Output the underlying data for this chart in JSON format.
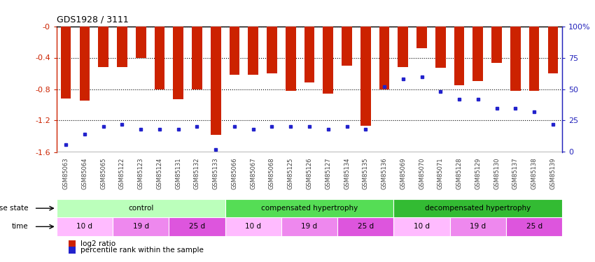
{
  "title": "GDS1928 / 3111",
  "samples": [
    "GSM85063",
    "GSM85064",
    "GSM85065",
    "GSM85122",
    "GSM85123",
    "GSM85124",
    "GSM85131",
    "GSM85132",
    "GSM85133",
    "GSM85066",
    "GSM85067",
    "GSM85068",
    "GSM85125",
    "GSM85126",
    "GSM85127",
    "GSM85134",
    "GSM85135",
    "GSM85136",
    "GSM85069",
    "GSM85070",
    "GSM85071",
    "GSM85128",
    "GSM85129",
    "GSM85130",
    "GSM85137",
    "GSM85138",
    "GSM85139"
  ],
  "log2_ratios": [
    -0.92,
    -0.95,
    -0.52,
    -0.52,
    -0.4,
    -0.8,
    -0.93,
    -0.8,
    -1.38,
    -0.62,
    -0.62,
    -0.6,
    -0.82,
    -0.72,
    -0.86,
    -0.5,
    -1.27,
    -0.8,
    -0.52,
    -0.28,
    -0.53,
    -0.75,
    -0.7,
    -0.47,
    -0.82,
    -0.82,
    -0.6
  ],
  "percentile_ranks": [
    0.06,
    0.14,
    0.2,
    0.22,
    0.18,
    0.18,
    0.18,
    0.2,
    0.02,
    0.2,
    0.18,
    0.2,
    0.2,
    0.2,
    0.18,
    0.2,
    0.18,
    0.52,
    0.58,
    0.6,
    0.48,
    0.42,
    0.42,
    0.35,
    0.35,
    0.32,
    0.22
  ],
  "ylim": [
    -1.6,
    0.0
  ],
  "yticks": [
    -1.6,
    -1.2,
    -0.8,
    -0.4,
    0.0
  ],
  "ytick_labels_left": [
    "-1.6",
    "-1.2",
    "-0.8",
    "-0.4",
    "-0"
  ],
  "ytick_labels_right": [
    "0",
    "25",
    "50",
    "75",
    "100%"
  ],
  "bar_color": "#cc2200",
  "blue_color": "#2222cc",
  "bg_color": "#ffffff",
  "axis_color_left": "#cc2200",
  "axis_color_right": "#2222bb",
  "disease_groups": [
    {
      "label": "control",
      "start": 0,
      "end": 9,
      "color": "#bbffbb"
    },
    {
      "label": "compensated hypertrophy",
      "start": 9,
      "end": 18,
      "color": "#55dd55"
    },
    {
      "label": "decompensated hypertrophy",
      "start": 18,
      "end": 27,
      "color": "#33bb33"
    }
  ],
  "time_groups": [
    {
      "label": "10 d",
      "start": 0,
      "end": 3,
      "color": "#ffbbff"
    },
    {
      "label": "19 d",
      "start": 3,
      "end": 6,
      "color": "#ee88ee"
    },
    {
      "label": "25 d",
      "start": 6,
      "end": 9,
      "color": "#dd55dd"
    },
    {
      "label": "10 d",
      "start": 9,
      "end": 12,
      "color": "#ffbbff"
    },
    {
      "label": "19 d",
      "start": 12,
      "end": 15,
      "color": "#ee88ee"
    },
    {
      "label": "25 d",
      "start": 15,
      "end": 18,
      "color": "#dd55dd"
    },
    {
      "label": "10 d",
      "start": 18,
      "end": 21,
      "color": "#ffbbff"
    },
    {
      "label": "19 d",
      "start": 21,
      "end": 24,
      "color": "#ee88ee"
    },
    {
      "label": "25 d",
      "start": 24,
      "end": 27,
      "color": "#dd55dd"
    }
  ],
  "disease_state_label": "disease state",
  "time_label": "time",
  "legend_labels": [
    "log2 ratio",
    "percentile rank within the sample"
  ]
}
